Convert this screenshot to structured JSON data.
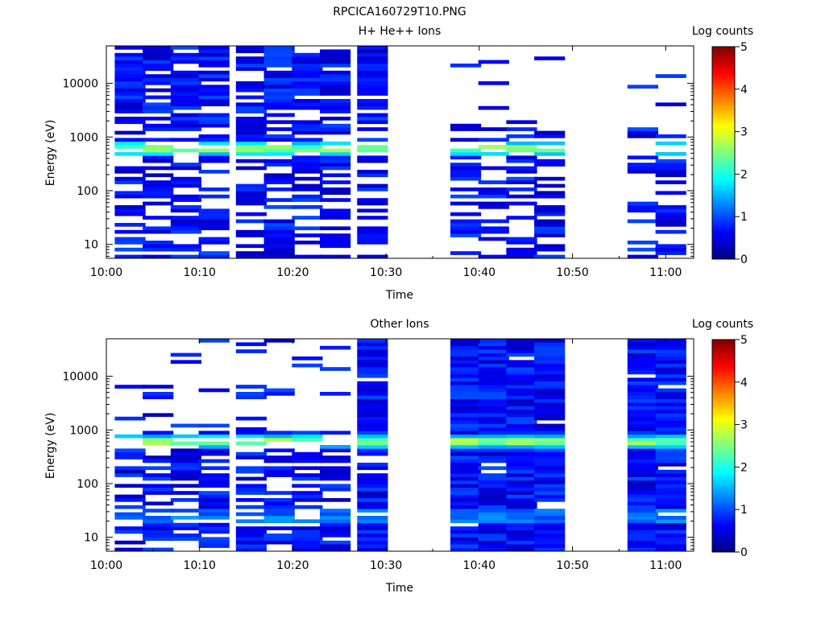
{
  "figure_title": "RPCICA160729T10.PNG",
  "colormap": [
    "#00007f",
    "#0000ff",
    "#00ffff",
    "#ffff00",
    "#ff0000",
    "#7f0000"
  ],
  "chart_data": [
    {
      "type": "heatmap",
      "title": "H+ He++ Ions",
      "xlabel": "Time",
      "ylabel": "Energy (eV)",
      "x_ticks": [
        "10:00",
        "10:10",
        "10:20",
        "10:30",
        "10:40",
        "10:50",
        "11:00"
      ],
      "y_ticks": [
        "10",
        "100",
        "1000",
        "10000"
      ],
      "y_scale": "log",
      "colorbar": {
        "label": "Log counts",
        "ticks": [
          "0",
          "1",
          "2",
          "3",
          "4",
          "5"
        ],
        "range": [
          0,
          5
        ]
      },
      "time_range": [
        "10:00",
        "11:03"
      ],
      "data_columns": [
        "10:01",
        "10:04",
        "10:07",
        "10:10",
        "10:14",
        "10:17",
        "10:20",
        "10:23",
        "10:27",
        "10:37",
        "10:40",
        "10:43",
        "10:46",
        "10:56",
        "10:59"
      ],
      "gap": [
        "10:30",
        "10:36"
      ],
      "dominant_band_eV": 600,
      "dominant_band_log_counts": 2.7
    },
    {
      "type": "heatmap",
      "title": "Other Ions",
      "xlabel": "Time",
      "ylabel": "Energy (eV)",
      "x_ticks": [
        "10:00",
        "10:10",
        "10:20",
        "10:30",
        "10:40",
        "10:50",
        "11:00"
      ],
      "y_ticks": [
        "10",
        "100",
        "1000",
        "10000"
      ],
      "y_scale": "log",
      "colorbar": {
        "label": "Log counts",
        "ticks": [
          "0",
          "1",
          "2",
          "3",
          "4",
          "5"
        ],
        "range": [
          0,
          5
        ]
      },
      "time_range": [
        "10:00",
        "11:03"
      ],
      "data_columns": [
        "10:01",
        "10:04",
        "10:07",
        "10:10",
        "10:14",
        "10:17",
        "10:20",
        "10:23",
        "10:27",
        "10:37",
        "10:40",
        "10:43",
        "10:46",
        "10:56",
        "10:59"
      ],
      "gap": [
        "10:30",
        "10:36"
      ],
      "dominant_band_eV": 600,
      "dominant_band_log_counts": 2.8,
      "secondary_band_eV": 25,
      "secondary_band_log_counts": 1.4
    }
  ]
}
